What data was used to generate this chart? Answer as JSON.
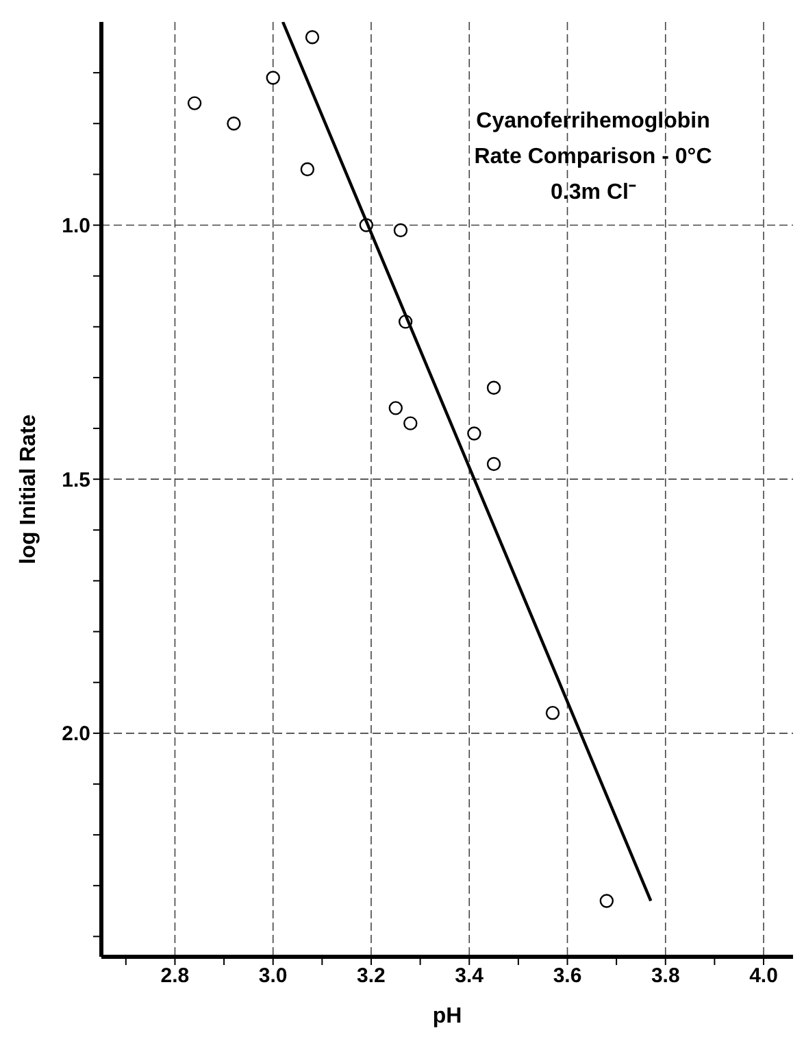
{
  "chart_data": {
    "type": "scatter",
    "title": "Cyanoferrihemoglobin",
    "subtitle": "Rate Comparison - 0°C",
    "annotations": [
      "0.3m Cl⁻"
    ],
    "xlabel": "pH",
    "ylabel": "log Initial Rate",
    "xlim": [
      2.65,
      4.06
    ],
    "ylim": [
      2.44,
      0.6
    ],
    "xticks": [
      {
        "value": 2.7,
        "label": null
      },
      2.8,
      {
        "value": 2.9,
        "label": null
      },
      {
        "value": 3,
        "label": "3.0"
      },
      {
        "value": 3.1,
        "label": null
      },
      3.2,
      {
        "value": 3.3,
        "label": null
      },
      3.4,
      {
        "value": 3.5,
        "label": null
      },
      3.6,
      {
        "value": 3.7,
        "label": null
      },
      3.8,
      {
        "value": 3.9,
        "label": null
      },
      {
        "value": 4,
        "label": "4.0"
      }
    ],
    "yticks": [
      {
        "value": 0.7,
        "label": null
      },
      {
        "value": 0.8,
        "label": null
      },
      {
        "value": 0.9,
        "label": null
      },
      {
        "value": 1,
        "label": "1.0"
      },
      {
        "value": 1.1,
        "label": null
      },
      {
        "value": 1.2,
        "label": null
      },
      {
        "value": 1.3,
        "label": null
      },
      {
        "value": 1.4,
        "label": null
      },
      1.5,
      {
        "value": 1.6,
        "label": null
      },
      {
        "value": 1.7,
        "label": null
      },
      {
        "value": 1.8,
        "label": null
      },
      {
        "value": 1.9,
        "label": null
      },
      {
        "value": 2,
        "label": "2.0"
      },
      {
        "value": 2.1,
        "label": null
      },
      {
        "value": 2.2,
        "label": null
      },
      {
        "value": 2.3,
        "label": null
      },
      {
        "value": 2.4,
        "label": null
      }
    ],
    "grid": true,
    "series": [
      {
        "type": "scatter",
        "marker": "circle",
        "color": "#000000",
        "x": [
          2.84,
          2.92,
          3.0,
          3.08,
          3.07,
          3.19,
          3.26,
          3.27,
          3.45,
          3.25,
          3.28,
          3.41,
          3.45,
          3.57,
          3.68
        ],
        "values": [
          0.76,
          0.8,
          0.71,
          0.63,
          0.89,
          1.0,
          1.01,
          1.19,
          1.32,
          1.36,
          1.39,
          1.41,
          1.47,
          1.96,
          2.33
        ]
      },
      {
        "type": "line",
        "marker": "none",
        "color": "#000000",
        "x": [
          3.02,
          3.77
        ],
        "values": [
          0.6,
          2.33
        ]
      }
    ]
  }
}
